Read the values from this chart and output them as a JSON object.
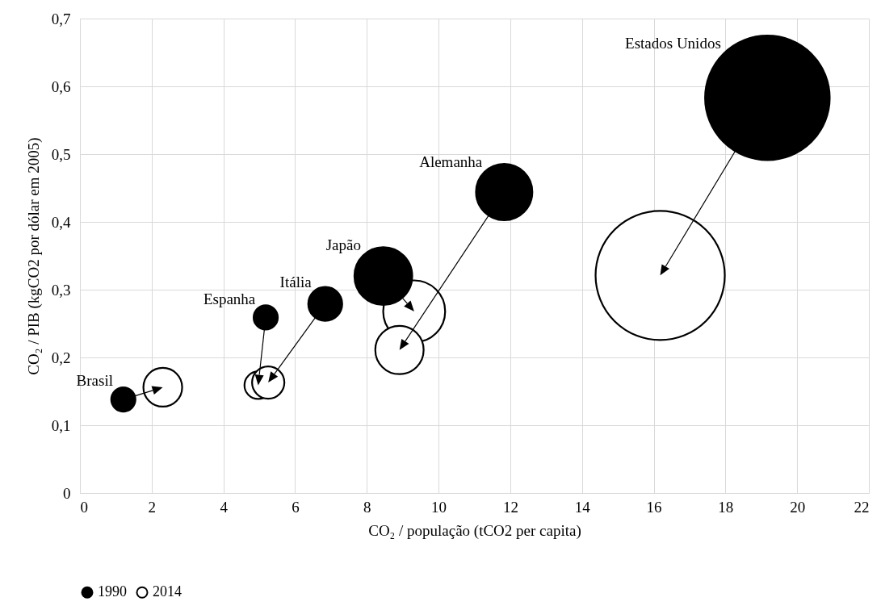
{
  "chart_data": {
    "type": "bubble",
    "xlabel": "CO₂ / população (tCO2 per capita)",
    "ylabel": "CO₂ / PIB (kgCO2 por dólar em 2005)",
    "series": [
      {
        "name": "1990",
        "color": "#000000",
        "x": [
          1.21,
          5.18,
          6.84,
          8.46,
          11.83,
          19.17
        ],
        "values": [
          0.138,
          0.259,
          0.279,
          0.32,
          0.444,
          0.583
        ],
        "sizes": [
          0.035,
          0.035,
          0.069,
          0.2,
          0.19,
          0.93
        ]
      },
      {
        "name": "2014",
        "color": "#ffffff",
        "x": [
          2.31,
          4.97,
          5.25,
          9.32,
          8.91,
          16.18
        ],
        "values": [
          0.156,
          0.159,
          0.163,
          0.268,
          0.211,
          0.321
        ],
        "sizes": [
          0.09,
          0.045,
          0.0625,
          0.23,
          0.14,
          1
        ]
      }
    ],
    "xlim": [
      0,
      22
    ],
    "xticks": [
      0,
      2,
      4,
      6,
      8,
      10,
      12,
      14,
      16,
      18,
      20,
      22
    ],
    "ylim": [
      0,
      0.7
    ],
    "yticks": [
      0,
      {
        "value": 0.1,
        "label": "0,1"
      },
      {
        "value": 0.2,
        "label": "0,2"
      },
      {
        "value": 0.3,
        "label": "0,3"
      },
      {
        "value": 0.4,
        "label": "0,4"
      },
      {
        "value": 0.5,
        "label": "0,5"
      },
      {
        "value": 0.6,
        "label": "0,6"
      },
      {
        "value": 0.7,
        "label": "0,7"
      }
    ],
    "annotations": [
      "Brasil",
      {
        "text": "Espanha",
        "x": 5.18,
        "y": 0.259
      },
      "Itália",
      "Japão",
      "Alemanha",
      "Estados Unidos"
    ],
    "grid": true,
    "legend": "bottom"
  }
}
